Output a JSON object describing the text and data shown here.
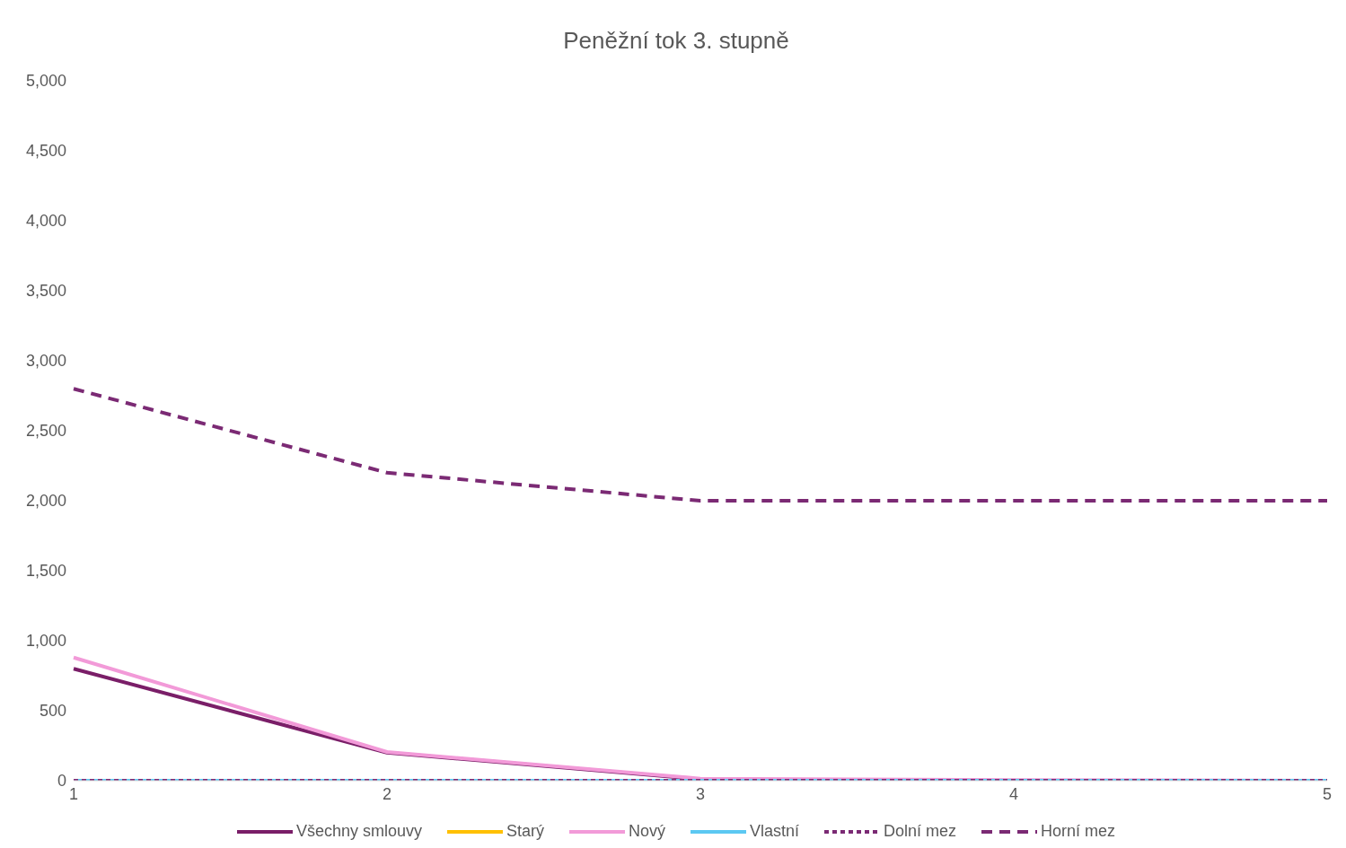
{
  "chart_data": {
    "type": "line",
    "title": "Peněžní tok 3. stupně",
    "categories": [
      "1",
      "2",
      "3",
      "4",
      "5"
    ],
    "series": [
      {
        "name": "Všechny smlouvy",
        "color": "#7a1e68",
        "values": [
          800,
          200,
          10,
          null,
          null
        ]
      },
      {
        "name": "Starý",
        "color": "#ffc000",
        "values": [
          null,
          null,
          null,
          null,
          null
        ]
      },
      {
        "name": "Nový",
        "color": "#f29ad8",
        "values": [
          880,
          205,
          15,
          5,
          0
        ]
      },
      {
        "name": "Vlastní",
        "color": "#5cc8f2",
        "values": [
          0,
          0,
          0,
          0,
          0
        ]
      },
      {
        "name": "Dolní mez",
        "color": "#7b2a74",
        "line_style": "dotted",
        "values": [
          0,
          0,
          0,
          0,
          0
        ]
      },
      {
        "name": "Horní mez",
        "color": "#7b2a74",
        "line_style": "dashed",
        "values": [
          2800,
          2200,
          2000,
          2000,
          2000
        ]
      }
    ],
    "ylim": [
      0,
      5000
    ],
    "yticks": [
      0,
      500,
      {
        "value": 1000,
        "label": "1,000"
      },
      {
        "value": 1500,
        "label": "1,500"
      },
      {
        "value": 2000,
        "label": "2,000"
      },
      {
        "value": 2500,
        "label": "2,500"
      },
      {
        "value": 3000,
        "label": "3,000"
      },
      {
        "value": 3500,
        "label": "3,500"
      },
      {
        "value": 4000,
        "label": "4,000"
      },
      {
        "value": 4500,
        "label": "4,500"
      },
      {
        "value": 5000,
        "label": "5,000"
      }
    ],
    "grid": false,
    "legend": "bottom",
    "marker": "none"
  }
}
